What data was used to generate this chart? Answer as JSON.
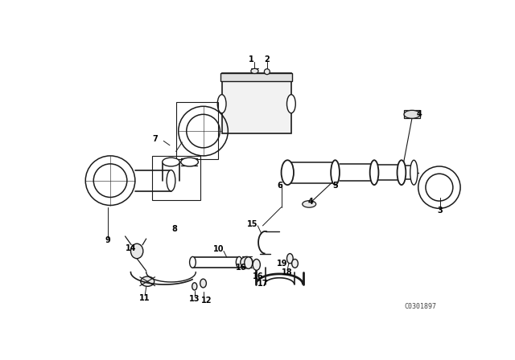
{
  "background_color": "#ffffff",
  "line_color": "#1a1a1a",
  "figsize": [
    6.4,
    4.48
  ],
  "dpi": 100,
  "watermark": "C0301897"
}
